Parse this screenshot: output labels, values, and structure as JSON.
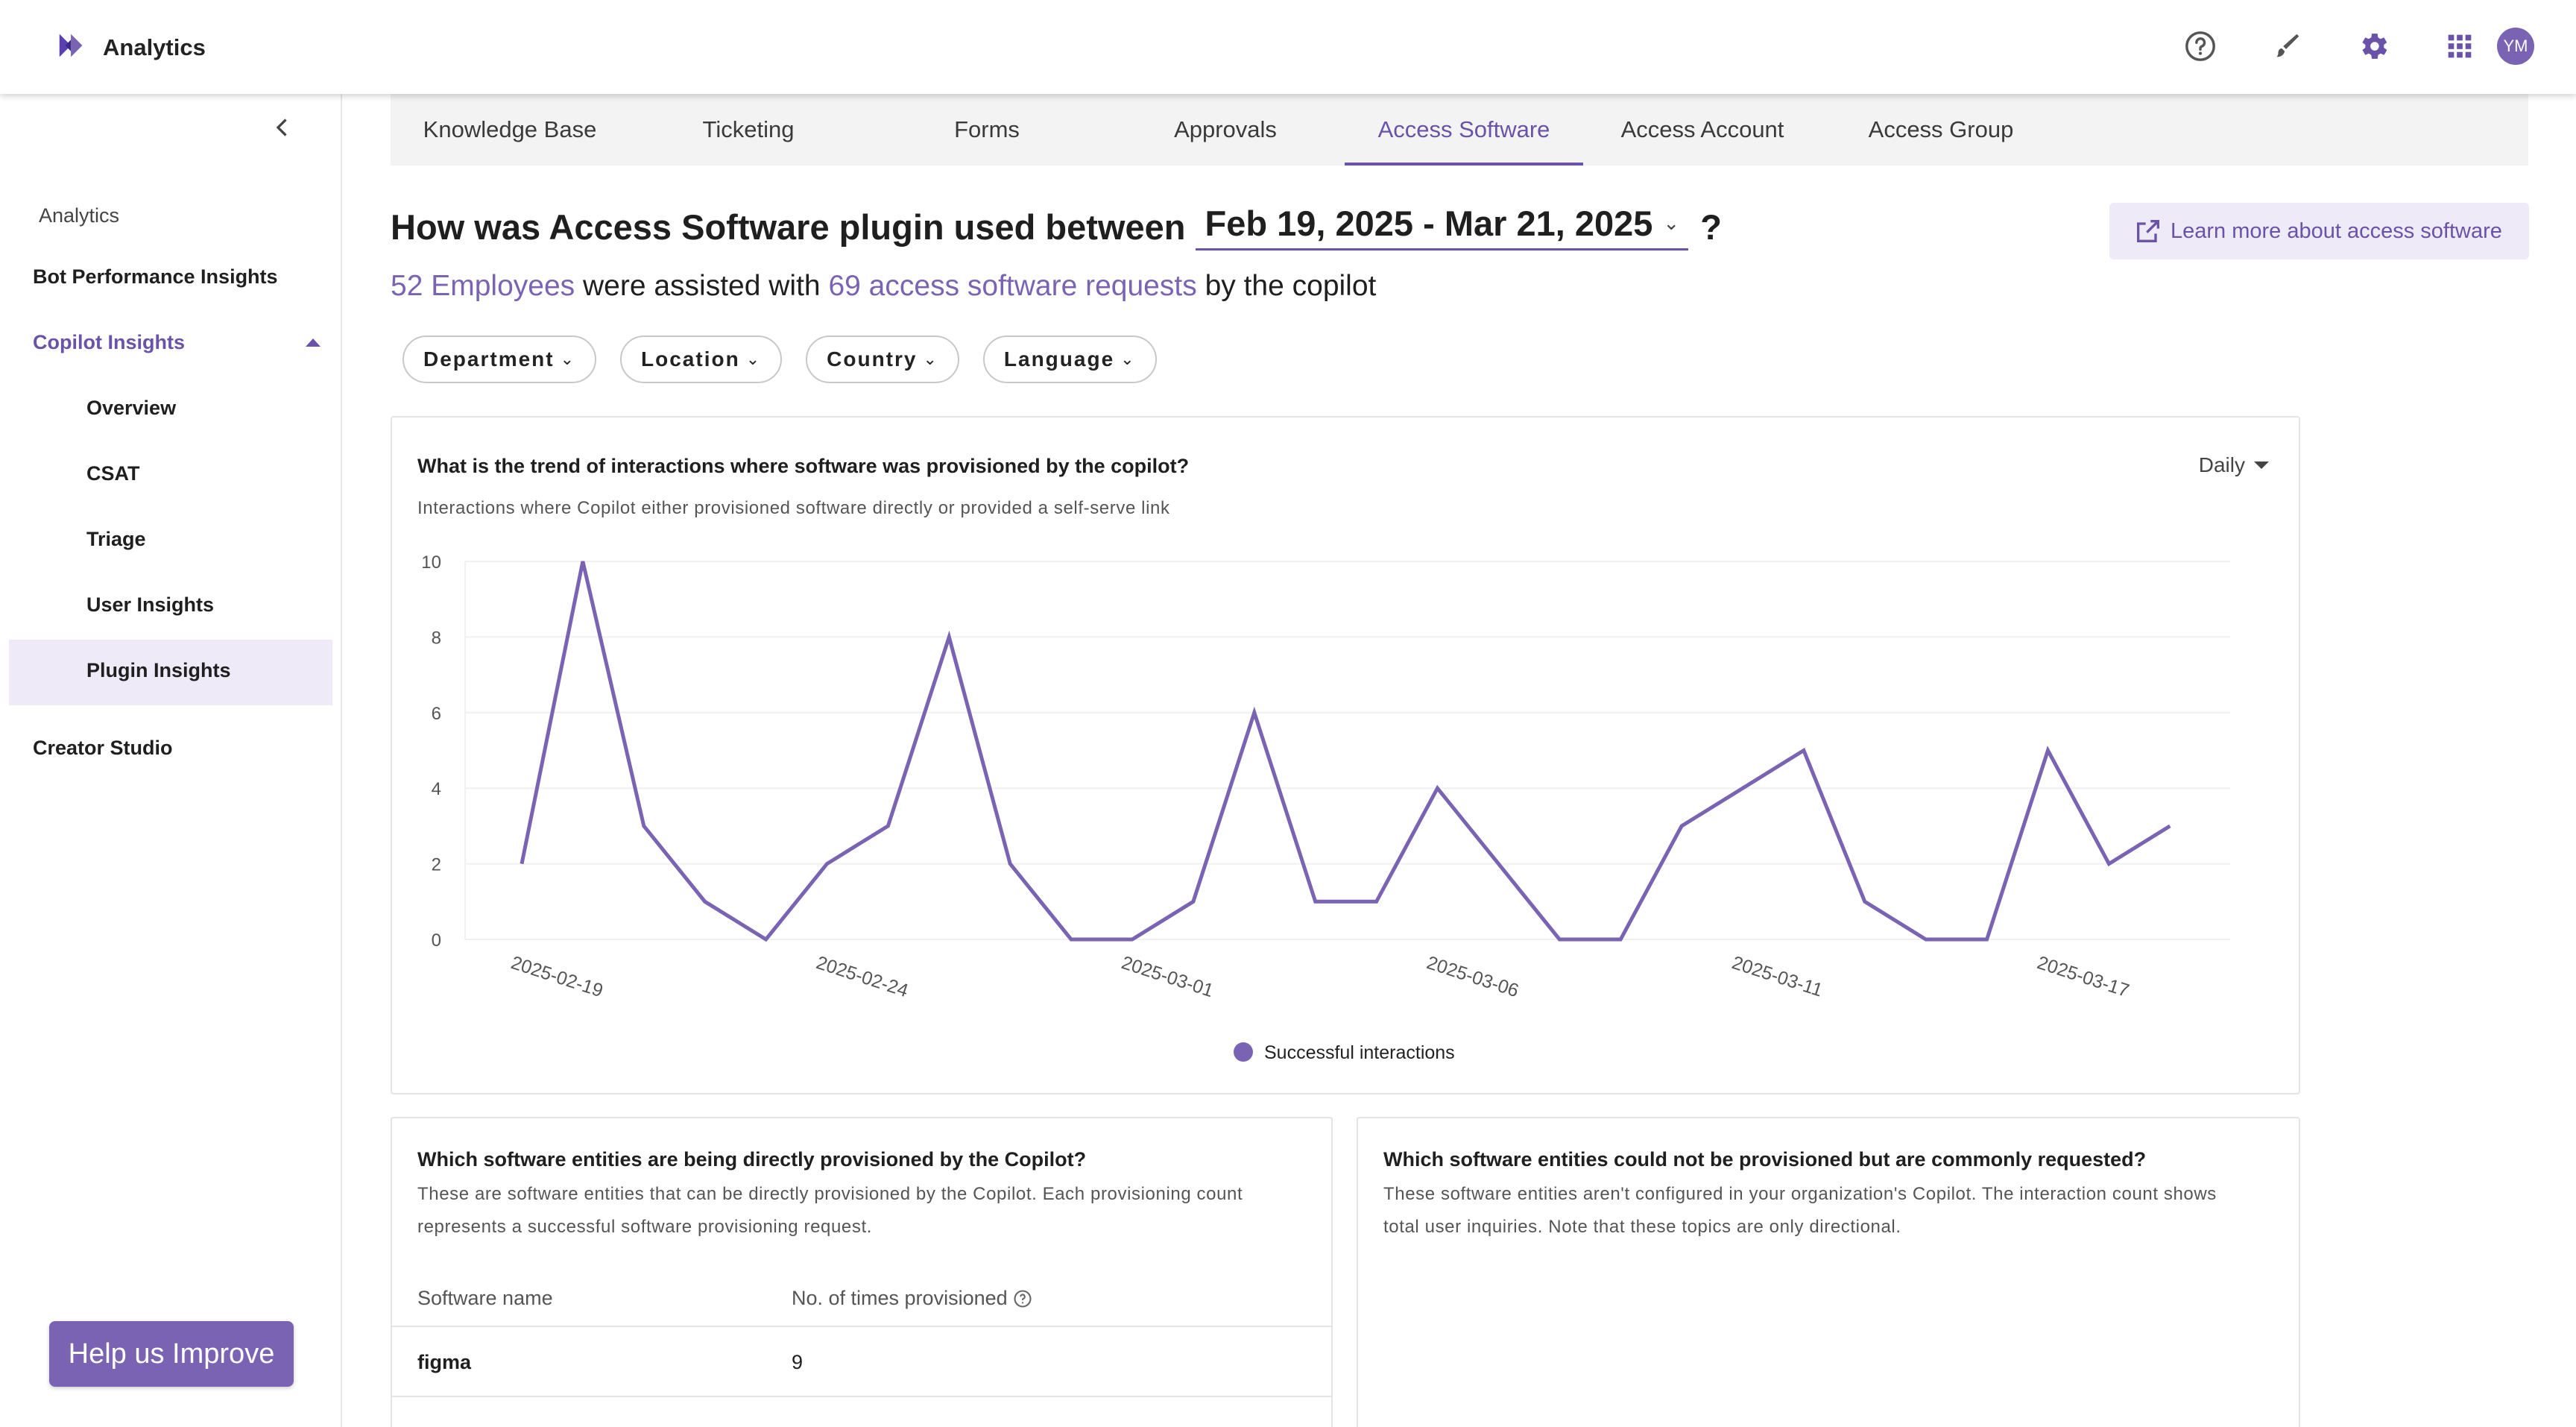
{
  "app": {
    "title": "Analytics"
  },
  "header": {
    "avatar_initials": "YM",
    "accent_color": "#7b63b4",
    "icons": [
      "help-circle-icon",
      "brush-icon",
      "settings-gear-icon",
      "apps-grid-icon"
    ]
  },
  "sidebar": {
    "section_label": "Analytics",
    "items": {
      "bot_performance": "Bot Performance Insights",
      "copilot_insights": "Copilot Insights",
      "overview": "Overview",
      "csat": "CSAT",
      "triage": "Triage",
      "user_insights": "User Insights",
      "plugin_insights": "Plugin Insights",
      "creator_studio": "Creator Studio"
    },
    "active": "Plugin Insights"
  },
  "tabs": [
    "Knowledge Base",
    "Ticketing",
    "Forms",
    "Approvals",
    "Access Software",
    "Access Account",
    "Access Group"
  ],
  "active_tab": "Access Software",
  "heading": {
    "prefix": "How was Access Software plugin used between",
    "date_range": "Feb 19, 2025 - Mar 21, 2025",
    "suffix": "?"
  },
  "learn_more": "Learn more about access software",
  "summary": {
    "employees": "52 Employees",
    "mid": "were assisted with",
    "requests": "69 access software requests",
    "end": "by the copilot"
  },
  "filters": [
    "Department",
    "Location",
    "Country",
    "Language"
  ],
  "trend_card": {
    "title": "What is the trend of interactions where software was provisioned by the copilot?",
    "description": "Interactions where Copilot either provisioned software directly or provided a self-serve link",
    "granularity": "Daily"
  },
  "chart_data": {
    "type": "line",
    "title": "",
    "xlabel": "",
    "ylabel": "",
    "ylim": [
      0,
      10
    ],
    "y_ticks": [
      0,
      2,
      4,
      6,
      8,
      10
    ],
    "x_tick_labels": [
      "2025-02-19",
      "2025-02-24",
      "2025-03-01",
      "2025-03-06",
      "2025-03-11",
      "2025-03-17"
    ],
    "x_tick_indices": [
      0,
      5,
      10,
      15,
      20,
      25
    ],
    "grid": true,
    "legend_position": "bottom-center",
    "series": [
      {
        "name": "Successful interactions",
        "color": "#7b63b4",
        "values": [
          2,
          10,
          3,
          1,
          0,
          2,
          3,
          8,
          2,
          0,
          0,
          1,
          6,
          1,
          1,
          4,
          2,
          0,
          0,
          3,
          4,
          5,
          1,
          0,
          0,
          5,
          2,
          3
        ]
      }
    ]
  },
  "provisioned_card": {
    "title": "Which software entities are being directly provisioned by the Copilot?",
    "description_line1": "These are software entities that can be directly provisioned by the Copilot. Each provisioning count",
    "description_line2": "represents a successful software provisioning request.",
    "columns": [
      "Software name",
      "No. of times provisioned"
    ],
    "rows": [
      {
        "name": "figma",
        "count": "9"
      }
    ]
  },
  "unprovisioned_card": {
    "title": "Which software entities could not be provisioned but are commonly requested?",
    "description_line1": "These software entities aren't configured in your organization's Copilot. The interaction count shows",
    "description_line2": "total user inquiries. Note that these topics are only directional."
  },
  "help_button": "Help us Improve"
}
